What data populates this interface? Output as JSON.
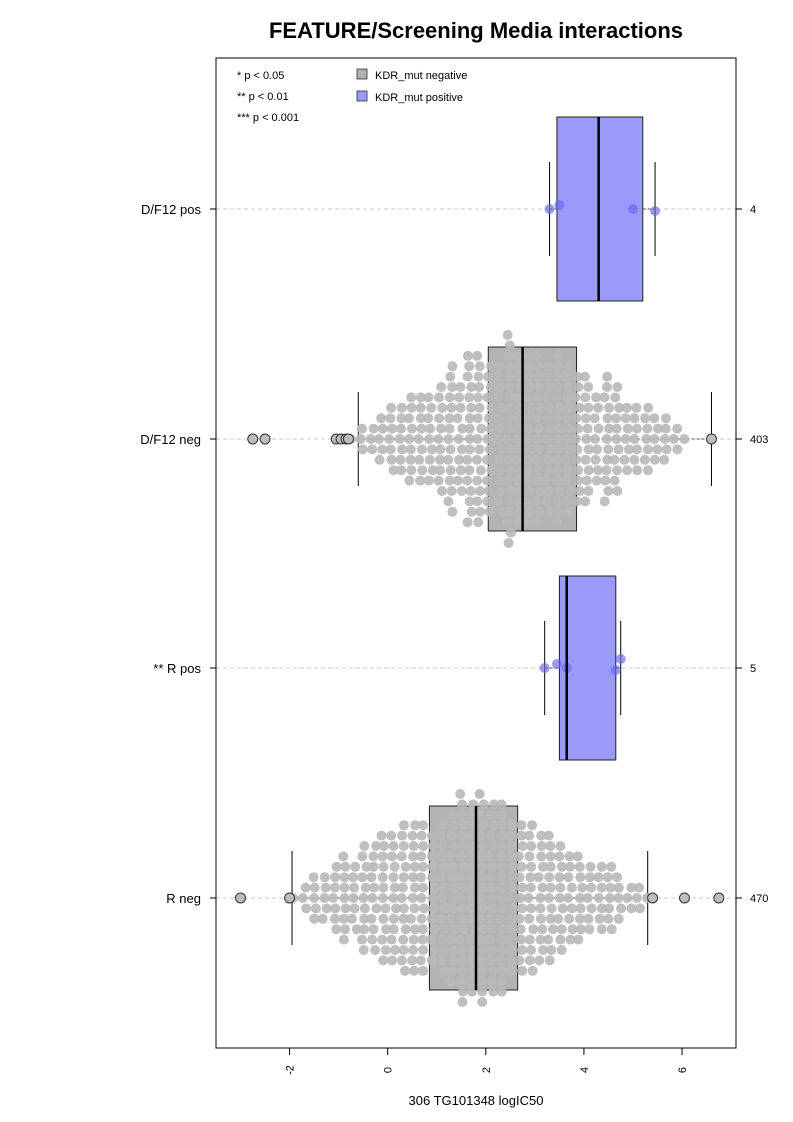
{
  "chart_data": {
    "type": "boxplot-beeswarm",
    "title": "FEATURE/Screening Media interactions",
    "xlabel": "306 TG101348 logIC50",
    "xlim": [
      -3.5,
      7.1
    ],
    "x_ticks": [
      -2,
      0,
      2,
      4,
      6
    ],
    "x_tick_labels": [
      "-2",
      "0",
      "2",
      "4",
      "6"
    ],
    "grid": "dashed horizontal lines at each group",
    "legend_position": "top-left",
    "significance_legend": [
      "* p < 0.05",
      "** p < 0.01",
      "*** p < 0.001"
    ],
    "legend": [
      {
        "label": "KDR_mut negative",
        "color": "#b0b0b0"
      },
      {
        "label": "KDR_mut positive",
        "color": "#9a9afa"
      }
    ],
    "groups": [
      {
        "label": "D/F12 pos",
        "n": "4",
        "status": "positive",
        "box": {
          "q1": 3.45,
          "median": 4.3,
          "q3": 5.2,
          "whisker_low": 3.3,
          "whisker_high": 5.45
        },
        "points": [
          3.3,
          3.5,
          5.0,
          5.45
        ],
        "outliers": []
      },
      {
        "label": "D/F12 neg",
        "n": "403",
        "status": "negative",
        "box": {
          "q1": 2.05,
          "median": 2.75,
          "q3": 3.85,
          "whisker_low": -0.6,
          "whisker_high": 6.6
        },
        "swarm": {
          "min": -0.75,
          "max": 6.05,
          "peak": 2.6,
          "count": 403
        },
        "outliers": [
          -2.75,
          -2.5,
          -1.05,
          -0.95,
          -0.85,
          -0.8,
          6.6
        ]
      },
      {
        "label": "** R pos",
        "n": "5",
        "status": "positive",
        "box": {
          "q1": 3.5,
          "median": 3.65,
          "q3": 4.65,
          "whisker_low": 3.2,
          "whisker_high": 4.75
        },
        "points": [
          3.2,
          3.45,
          3.65,
          4.65,
          4.75
        ],
        "outliers": []
      },
      {
        "label": "R neg",
        "n": "470",
        "status": "negative",
        "box": {
          "q1": 0.85,
          "median": 1.8,
          "q3": 2.65,
          "whisker_low": -1.95,
          "whisker_high": 5.3
        },
        "swarm": {
          "min": -1.9,
          "max": 5.3,
          "peak": 1.7,
          "count": 470
        },
        "outliers": [
          -3.0,
          -2.0,
          5.4,
          6.05,
          6.75
        ]
      }
    ]
  },
  "colors": {
    "negative_fill": "#b3b3b3",
    "negative_point": "#b8b8b8",
    "positive_fill": "#9a9afa",
    "positive_point": "#6666ee",
    "axis": "#000000"
  }
}
